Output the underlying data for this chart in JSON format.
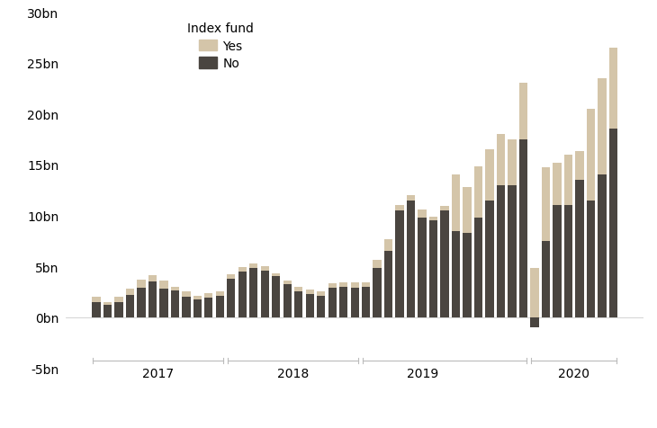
{
  "color_yes": "#d4c5a9",
  "color_no": "#4a4540",
  "legend_title": "Index fund",
  "legend_yes": "Yes",
  "legend_no": "No",
  "ylim": [
    -5000000000,
    30000000000
  ],
  "yticks": [
    -5000000000,
    0,
    5000000000,
    10000000000,
    15000000000,
    20000000000,
    25000000000,
    30000000000
  ],
  "ytick_labels": [
    "-5bn",
    "0bn",
    "5bn",
    "10bn",
    "15bn",
    "20bn",
    "25bn",
    "30bn"
  ],
  "year_labels": [
    "2017",
    "2018",
    "2019",
    "2020"
  ],
  "background_color": "#ffffff",
  "no_values": [
    1500000000,
    1200000000,
    1500000000,
    2200000000,
    2900000000,
    3500000000,
    2800000000,
    2600000000,
    2000000000,
    1700000000,
    1900000000,
    2100000000,
    3800000000,
    4500000000,
    4800000000,
    4600000000,
    4000000000,
    3200000000,
    2500000000,
    2300000000,
    2100000000,
    2900000000,
    3000000000,
    2900000000,
    3000000000,
    4800000000,
    6500000000,
    10500000000,
    11500000000,
    9800000000,
    9500000000,
    10500000000,
    8500000000,
    8300000000,
    9800000000,
    11500000000,
    13000000000,
    13000000000,
    17500000000,
    -1000000000,
    7500000000,
    11000000000,
    11000000000,
    13500000000,
    11500000000,
    14000000000,
    18500000000
  ],
  "yes_values": [
    500000000,
    300000000,
    500000000,
    600000000,
    800000000,
    600000000,
    800000000,
    400000000,
    500000000,
    400000000,
    500000000,
    400000000,
    400000000,
    400000000,
    500000000,
    400000000,
    300000000,
    400000000,
    500000000,
    400000000,
    400000000,
    400000000,
    400000000,
    500000000,
    400000000,
    800000000,
    1200000000,
    500000000,
    500000000,
    800000000,
    400000000,
    400000000,
    5500000000,
    4500000000,
    5000000000,
    5000000000,
    5000000000,
    4500000000,
    5500000000,
    4800000000,
    7200000000,
    4200000000,
    5000000000,
    2800000000,
    9000000000,
    9500000000,
    8000000000
  ],
  "year_centers": [
    5.5,
    17.5,
    29.0,
    42.5
  ],
  "year_starts": [
    0,
    12,
    24,
    39
  ],
  "year_ends": [
    11,
    23,
    38,
    46
  ]
}
